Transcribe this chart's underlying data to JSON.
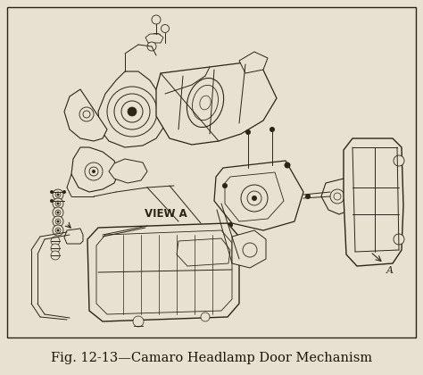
{
  "background_color": "#e8e0d0",
  "border_color": "#2a2518",
  "title": "Fig. 12-13—Camaro Headlamp Door Mechanism",
  "title_fontsize": 10.5,
  "title_color": "#1a1508",
  "view_label": "VIEW A",
  "view_label_fontsize": 8.5,
  "label_a": "A",
  "line_color": "#2a2518",
  "light_line_color": "#5a5040",
  "figure_width": 4.74,
  "figure_height": 4.2,
  "dpi": 100
}
